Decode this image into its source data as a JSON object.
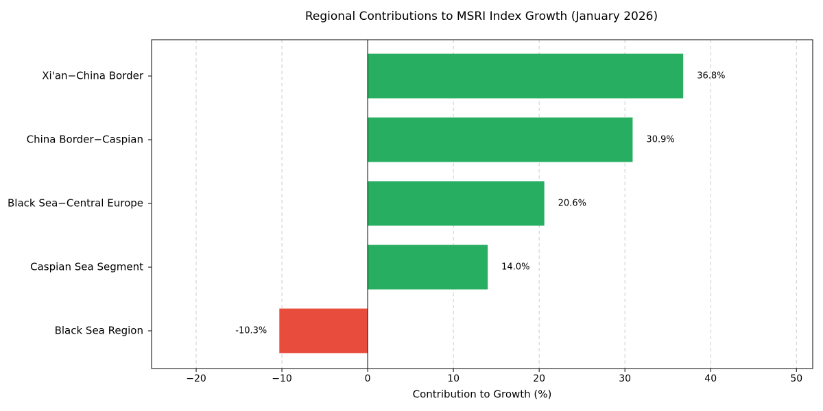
{
  "chart_data": {
    "type": "barh",
    "title": "Regional Contributions to MSRI Index Growth (January 2026)",
    "x_label": "Contribution to Growth (%)",
    "categories": [
      "Xi'an−China Border",
      "China Border−Caspian",
      "Black Sea−Central Europe",
      "Caspian Sea Segment",
      "Black Sea Region"
    ],
    "values": [
      36.8,
      30.9,
      20.6,
      14.0,
      -10.3
    ],
    "value_labels": [
      "36.8%",
      "30.9%",
      "20.6%",
      "14.0%",
      "-10.3%"
    ],
    "colors": [
      "#27ae60",
      "#27ae60",
      "#27ae60",
      "#27ae60",
      "#e74c3c"
    ],
    "xlim": [
      -25.2,
      51.9
    ],
    "xticks": [
      {
        "value": -20,
        "label": "−20"
      },
      {
        "value": -10,
        "label": "−10"
      },
      0,
      10,
      20,
      30,
      40,
      50
    ],
    "grid": true
  }
}
